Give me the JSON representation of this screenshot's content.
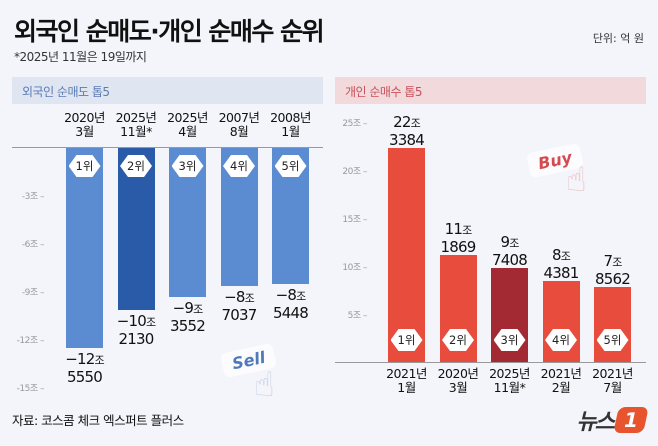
{
  "title": "외국인 순매도·개인 순매수 순위",
  "note": "*2025년 11월은 19일까지",
  "unit": "단위: 억 원",
  "source": "자료: 코스콤 체크 엑스퍼트 플러스",
  "logo": "뉴스1",
  "decorations": {
    "sell": "Sell",
    "buy": "Buy"
  },
  "colors": {
    "left_bar": "#5b8bd0",
    "left_highlight": "#2a5ba8",
    "right_bar": "#e84c3d",
    "right_highlight": "#a32a33"
  },
  "chart_data": [
    {
      "type": "bar",
      "title": "외국인 순매도 톱5",
      "unit_label": "조",
      "ylim": [
        -15,
        0
      ],
      "yticks": [
        {
          "v": -3,
          "label": "-3조"
        },
        {
          "v": -6,
          "label": "-6조"
        },
        {
          "v": -9,
          "label": "-9조"
        },
        {
          "v": -12,
          "label": "-12조"
        },
        {
          "v": -15,
          "label": "-15조"
        }
      ],
      "categories": [
        [
          "2020년",
          "3월"
        ],
        [
          "2025년",
          "11월*"
        ],
        [
          "2025년",
          "4월"
        ],
        [
          "2007년",
          "8월"
        ],
        [
          "2008년",
          "1월"
        ]
      ],
      "values": [
        -12.555,
        -10.213,
        -9.3552,
        -8.7037,
        -8.5448
      ],
      "labels": [
        [
          "−12",
          "5550"
        ],
        [
          "−10",
          "2130"
        ],
        [
          "−9",
          "3552"
        ],
        [
          "−8",
          "7037"
        ],
        [
          "−8",
          "5448"
        ]
      ],
      "ranks": [
        "1위",
        "2위",
        "3위",
        "4위",
        "5위"
      ],
      "highlight": 1
    },
    {
      "type": "bar",
      "title": "개인 순매수 톱5",
      "unit_label": "조",
      "ylim": [
        0,
        25
      ],
      "yticks": [
        {
          "v": 5,
          "label": "5조"
        },
        {
          "v": 10,
          "label": "10조"
        },
        {
          "v": 15,
          "label": "15조"
        },
        {
          "v": 20,
          "label": "20조"
        },
        {
          "v": 25,
          "label": "25조"
        }
      ],
      "categories": [
        [
          "2021년",
          "1월"
        ],
        [
          "2020년",
          "3월"
        ],
        [
          "2025년",
          "11월*"
        ],
        [
          "2021년",
          "2월"
        ],
        [
          "2021년",
          "7월"
        ]
      ],
      "values": [
        22.3384,
        11.1869,
        9.7408,
        8.4381,
        7.8562
      ],
      "labels": [
        [
          "22",
          "3384"
        ],
        [
          "11",
          "1869"
        ],
        [
          "9",
          "7408"
        ],
        [
          "8",
          "4381"
        ],
        [
          "7",
          "8562"
        ]
      ],
      "ranks": [
        "1위",
        "2위",
        "3위",
        "4위",
        "5위"
      ],
      "highlight": 2
    }
  ]
}
